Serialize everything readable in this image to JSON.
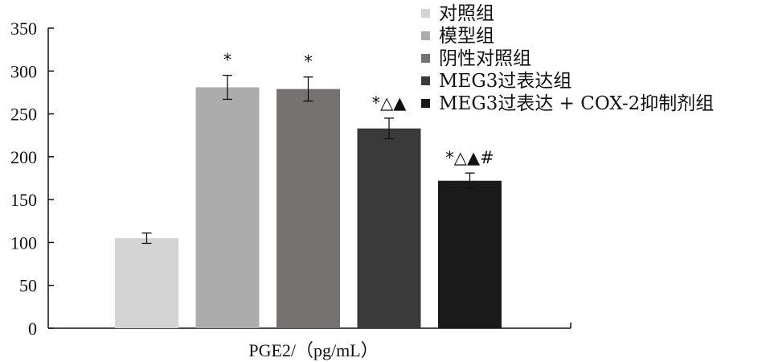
{
  "chart_data": {
    "type": "bar",
    "title": "",
    "xlabel": "PGE2/（pg/mL）",
    "ylabel": "",
    "ylim": [
      0,
      350
    ],
    "yticks": [
      0,
      50,
      100,
      150,
      200,
      250,
      300,
      350
    ],
    "grid": false,
    "legend_position": "top-right",
    "series": [
      {
        "name": "对照组",
        "value": 105,
        "error": 6,
        "annotation": "",
        "color": "#d4d4d4"
      },
      {
        "name": "模型组",
        "value": 281,
        "error": 14,
        "annotation": "*",
        "color": "#acacac"
      },
      {
        "name": "阴性对照组",
        "value": 279,
        "error": 14,
        "annotation": "*",
        "color": "#767271"
      },
      {
        "name": "MEG3过表达组",
        "value": 233,
        "error": 12,
        "annotation": "*△▲",
        "color": "#3a3a3a"
      },
      {
        "name": "MEG3过表达 + COX-2抑制剂组",
        "value": 172,
        "error": 9,
        "annotation": "*△▲#",
        "color": "#1a1a1a"
      }
    ]
  }
}
